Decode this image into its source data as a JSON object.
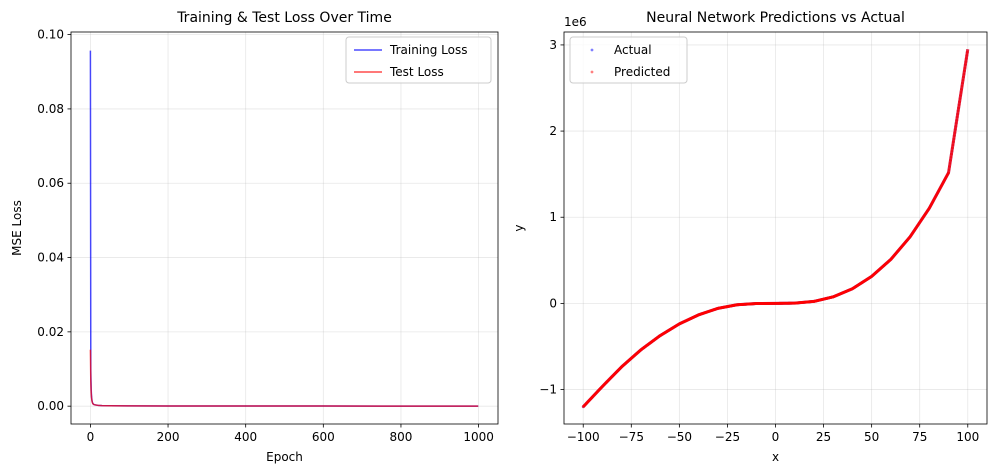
{
  "chart_data": [
    {
      "type": "line",
      "title": "Training & Test Loss Over Time",
      "xlabel": "Epoch",
      "ylabel": "MSE Loss",
      "xlim": [
        -50,
        1050
      ],
      "ylim": [
        -0.0048,
        0.1007
      ],
      "xticks": [
        0,
        200,
        400,
        600,
        800,
        1000
      ],
      "xtick_labels": [
        "0",
        "200",
        "400",
        "600",
        "800",
        "1000"
      ],
      "yticks": [
        0.0,
        0.02,
        0.04,
        0.06,
        0.08,
        0.1
      ],
      "ytick_labels": [
        "0.00",
        "0.02",
        "0.04",
        "0.06",
        "0.08",
        "0.10"
      ],
      "grid": true,
      "legend": "top-right",
      "series": [
        {
          "name": "Training Loss",
          "color": "#0000ff",
          "x": [
            0,
            1,
            2,
            3,
            4,
            5,
            6,
            8,
            10,
            15,
            20,
            30,
            50,
            100,
            200,
            400,
            600,
            800,
            999
          ],
          "y": [
            0.0957,
            0.0095,
            0.0044,
            0.0025,
            0.0016,
            0.0011,
            0.0008,
            0.0005,
            0.0004,
            0.0003,
            0.0002,
            0.00015,
            0.0001,
            8e-05,
            6e-05,
            4e-05,
            3e-05,
            2e-05,
            2e-05
          ]
        },
        {
          "name": "Test Loss",
          "color": "#ff0000",
          "x": [
            0,
            1,
            2,
            3,
            4,
            5,
            6,
            8,
            10,
            15,
            20,
            30,
            50,
            100,
            200,
            400,
            600,
            800,
            999
          ],
          "y": [
            0.0152,
            0.0068,
            0.0036,
            0.0022,
            0.0014,
            0.001,
            0.0007,
            0.0005,
            0.0004,
            0.0003,
            0.0002,
            0.00015,
            0.0001,
            8e-05,
            6e-05,
            4e-05,
            3e-05,
            2e-05,
            2e-05
          ]
        }
      ]
    },
    {
      "type": "scatter",
      "title": "Neural Network Predictions vs Actual",
      "xlabel": "x",
      "ylabel": "y",
      "offset_text": "1e6",
      "xlim": [
        -110,
        110
      ],
      "ylim": [
        -1.4,
        3.15
      ],
      "xticks": [
        -100,
        -75,
        -50,
        -25,
        0,
        25,
        50,
        75,
        100
      ],
      "xtick_labels": [
        "−100",
        "−75",
        "−50",
        "−25",
        "0",
        "25",
        "50",
        "75",
        "100"
      ],
      "yticks": [
        -1,
        0,
        1,
        2,
        3
      ],
      "ytick_labels": [
        "−1",
        "0",
        "1",
        "2",
        "3"
      ],
      "grid": true,
      "legend": "top-left",
      "series": [
        {
          "name": "Actual",
          "color": "#0000ff",
          "x": [
            -100,
            -90,
            -80,
            -70,
            -60,
            -50,
            -40,
            -30,
            -20,
            -10,
            0,
            10,
            20,
            30,
            40,
            50,
            60,
            70,
            80,
            90,
            100
          ],
          "y": [
            -1.2,
            -0.963,
            -0.736,
            -0.539,
            -0.374,
            -0.238,
            -0.133,
            -0.058,
            -0.016,
            -0.002,
            0.0,
            0.003,
            0.023,
            0.076,
            0.17,
            0.313,
            0.511,
            0.773,
            1.105,
            1.517,
            2.95
          ]
        },
        {
          "name": "Predicted",
          "color": "#ff0000",
          "x": [
            -100,
            -90,
            -80,
            -70,
            -60,
            -50,
            -40,
            -30,
            -20,
            -10,
            0,
            10,
            20,
            30,
            40,
            50,
            60,
            70,
            80,
            90,
            100
          ],
          "y": [
            -1.2,
            -0.963,
            -0.736,
            -0.539,
            -0.374,
            -0.238,
            -0.133,
            -0.058,
            -0.016,
            -0.002,
            0.0,
            0.003,
            0.023,
            0.076,
            0.17,
            0.313,
            0.511,
            0.773,
            1.105,
            1.517,
            2.95
          ]
        }
      ]
    }
  ]
}
